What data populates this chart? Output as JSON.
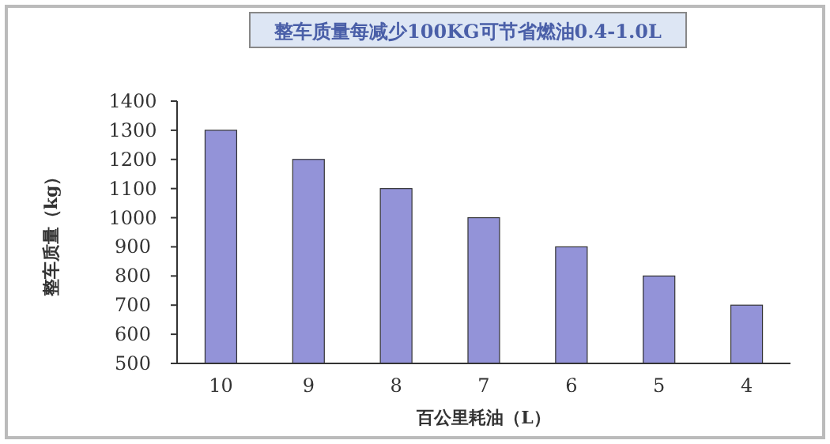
{
  "chart_data": {
    "type": "bar",
    "title": "整车质量每减少100KG可节省燃油0.4-1.0L",
    "xlabel": "百公里耗油（L）",
    "ylabel": "整车质量（kg）",
    "categories": [
      "10",
      "9",
      "8",
      "7",
      "6",
      "5",
      "4"
    ],
    "values": [
      1300,
      1200,
      1100,
      1000,
      900,
      800,
      700
    ],
    "color": "#9393d8",
    "ylim": [
      500,
      1400
    ],
    "yticks": [
      500,
      600,
      700,
      800,
      900,
      1000,
      1100,
      1200,
      1300,
      1400
    ],
    "grid": false
  }
}
